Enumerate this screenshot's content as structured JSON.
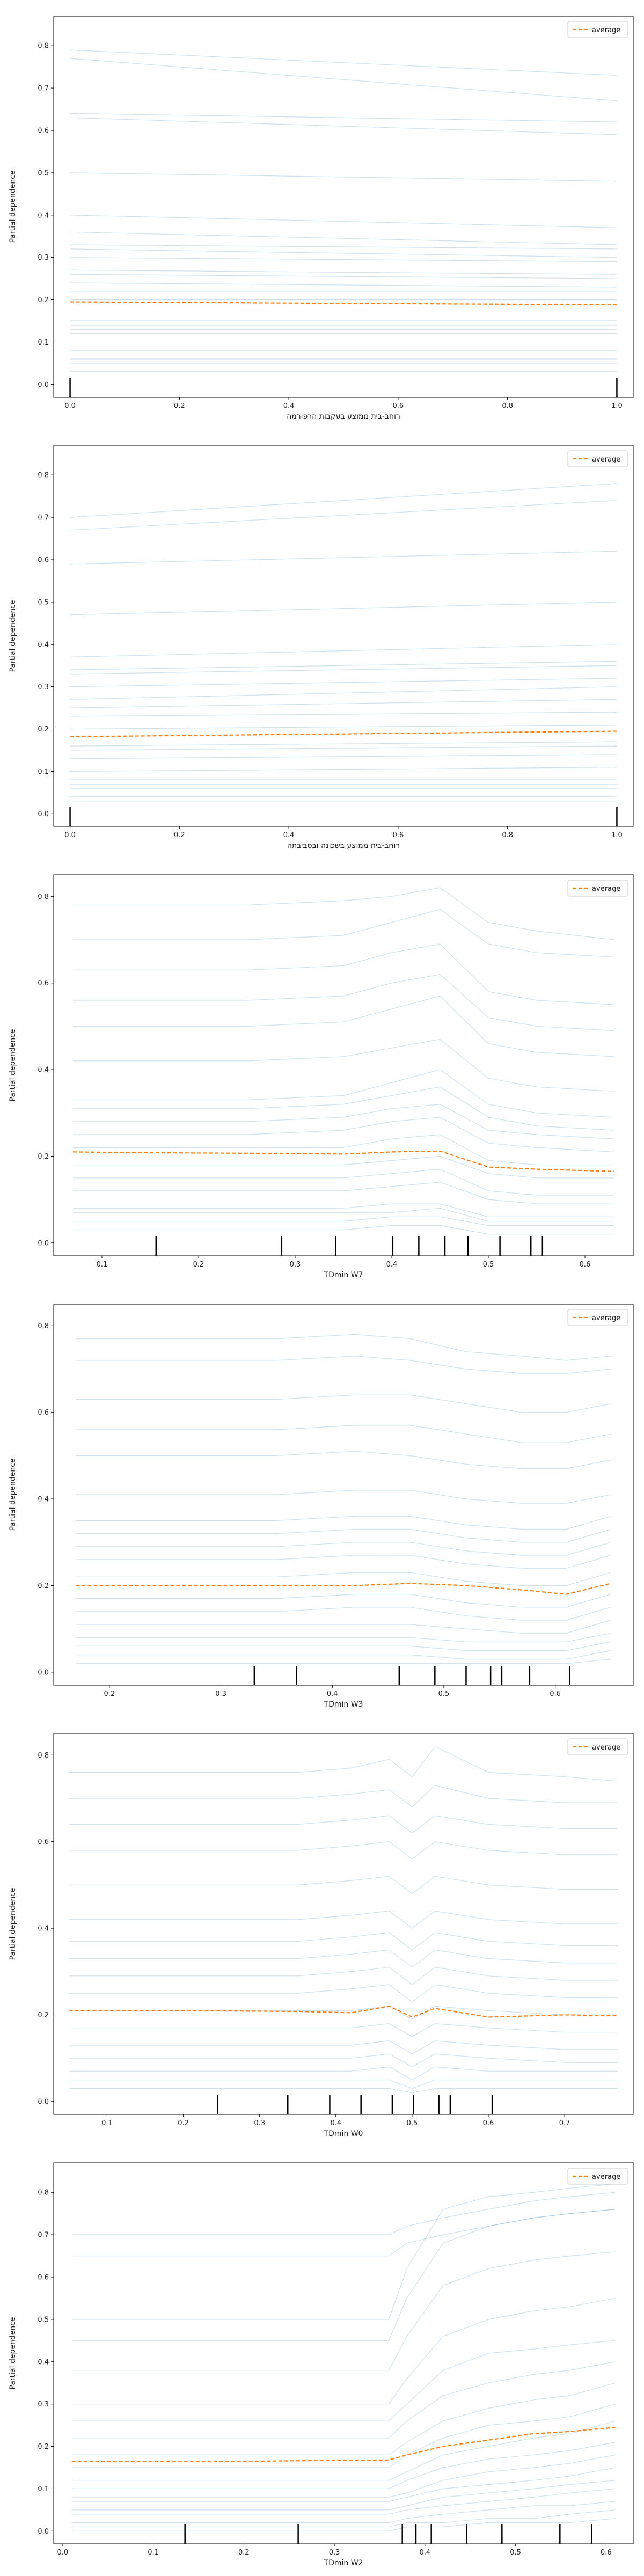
{
  "figure": {
    "background": "#ffffff",
    "ice_color": "#1f77b4",
    "average_color": "#ff7f0e"
  },
  "chart_data": [
    {
      "type": "line",
      "xlabel": "רוחב-בית ממוצע בעקבות הרפורמה",
      "ylabel": "Partial dependence",
      "xlim": [
        -0.03,
        1.03
      ],
      "ylim": [
        -0.03,
        0.87
      ],
      "xticks": [
        0.0,
        0.2,
        0.4,
        0.6,
        0.8,
        1.0
      ],
      "yticks": [
        0.0,
        0.1,
        0.2,
        0.3,
        0.4,
        0.5,
        0.6,
        0.7,
        0.8
      ],
      "legend": [
        "average"
      ],
      "legend_position": "top-right",
      "grid": false,
      "x": [
        0.0,
        1.0
      ],
      "ice_start": [
        0.79,
        0.77,
        0.64,
        0.63,
        0.5,
        0.4,
        0.36,
        0.33,
        0.32,
        0.3,
        0.27,
        0.26,
        0.24,
        0.22,
        0.2,
        0.15,
        0.14,
        0.13,
        0.12,
        0.08,
        0.06,
        0.05,
        0.03
      ],
      "ice_end": [
        0.73,
        0.67,
        0.62,
        0.59,
        0.48,
        0.37,
        0.33,
        0.32,
        0.3,
        0.29,
        0.26,
        0.25,
        0.23,
        0.22,
        0.2,
        0.15,
        0.14,
        0.13,
        0.12,
        0.08,
        0.06,
        0.05,
        0.03
      ],
      "average": [
        0.195,
        0.188
      ],
      "rug": [
        0.0,
        1.0
      ]
    },
    {
      "type": "line",
      "xlabel": "רוחב-בית ממוצע בשכונה ובסביבתה",
      "ylabel": "Partial dependence",
      "xlim": [
        -0.03,
        1.03
      ],
      "ylim": [
        -0.03,
        0.87
      ],
      "xticks": [
        0.0,
        0.2,
        0.4,
        0.6,
        0.8,
        1.0
      ],
      "yticks": [
        0.0,
        0.1,
        0.2,
        0.3,
        0.4,
        0.5,
        0.6,
        0.7,
        0.8
      ],
      "legend": [
        "average"
      ],
      "legend_position": "top-right",
      "grid": false,
      "x": [
        0.0,
        1.0
      ],
      "ice_start": [
        0.7,
        0.67,
        0.59,
        0.47,
        0.37,
        0.34,
        0.33,
        0.3,
        0.27,
        0.25,
        0.23,
        0.2,
        0.16,
        0.15,
        0.13,
        0.1,
        0.08,
        0.07,
        0.06,
        0.04,
        0.03
      ],
      "ice_end": [
        0.78,
        0.74,
        0.62,
        0.5,
        0.4,
        0.36,
        0.35,
        0.32,
        0.3,
        0.27,
        0.24,
        0.21,
        0.17,
        0.16,
        0.14,
        0.11,
        0.08,
        0.07,
        0.06,
        0.04,
        0.03
      ],
      "average": [
        0.182,
        0.195
      ],
      "rug": [
        0.0,
        1.0
      ]
    },
    {
      "type": "line",
      "xlabel": "TDmin W7",
      "ylabel": "Partial dependence",
      "xlim": [
        0.05,
        0.65
      ],
      "ylim": [
        -0.03,
        0.85
      ],
      "xticks": [
        0.1,
        0.2,
        0.3,
        0.4,
        0.5,
        0.6
      ],
      "yticks": [
        0.0,
        0.2,
        0.4,
        0.6,
        0.8
      ],
      "legend": [
        "average"
      ],
      "legend_position": "top-right",
      "grid": false,
      "x": [
        0.07,
        0.15,
        0.25,
        0.35,
        0.4,
        0.45,
        0.5,
        0.55,
        0.63
      ],
      "ice_profiles": [
        [
          0.78,
          0.78,
          0.78,
          0.79,
          0.8,
          0.82,
          0.74,
          0.72,
          0.7
        ],
        [
          0.7,
          0.7,
          0.7,
          0.71,
          0.74,
          0.77,
          0.69,
          0.67,
          0.66
        ],
        [
          0.63,
          0.63,
          0.63,
          0.64,
          0.67,
          0.69,
          0.58,
          0.56,
          0.55
        ],
        [
          0.56,
          0.56,
          0.56,
          0.57,
          0.6,
          0.62,
          0.52,
          0.5,
          0.49
        ],
        [
          0.5,
          0.5,
          0.5,
          0.51,
          0.54,
          0.57,
          0.46,
          0.44,
          0.43
        ],
        [
          0.42,
          0.42,
          0.42,
          0.43,
          0.45,
          0.47,
          0.38,
          0.36,
          0.35
        ],
        [
          0.33,
          0.33,
          0.33,
          0.34,
          0.37,
          0.4,
          0.32,
          0.3,
          0.29
        ],
        [
          0.31,
          0.31,
          0.31,
          0.32,
          0.34,
          0.36,
          0.29,
          0.27,
          0.26
        ],
        [
          0.28,
          0.28,
          0.28,
          0.29,
          0.31,
          0.32,
          0.26,
          0.25,
          0.24
        ],
        [
          0.25,
          0.25,
          0.25,
          0.26,
          0.28,
          0.29,
          0.23,
          0.22,
          0.21
        ],
        [
          0.22,
          0.22,
          0.22,
          0.22,
          0.24,
          0.25,
          0.19,
          0.18,
          0.18
        ],
        [
          0.18,
          0.18,
          0.18,
          0.18,
          0.19,
          0.2,
          0.16,
          0.15,
          0.15
        ],
        [
          0.15,
          0.15,
          0.15,
          0.15,
          0.16,
          0.17,
          0.12,
          0.11,
          0.11
        ],
        [
          0.12,
          0.12,
          0.12,
          0.12,
          0.13,
          0.14,
          0.1,
          0.09,
          0.09
        ],
        [
          0.08,
          0.08,
          0.08,
          0.08,
          0.09,
          0.09,
          0.06,
          0.06,
          0.06
        ],
        [
          0.07,
          0.07,
          0.07,
          0.07,
          0.07,
          0.08,
          0.05,
          0.05,
          0.05
        ],
        [
          0.05,
          0.05,
          0.05,
          0.05,
          0.06,
          0.06,
          0.04,
          0.04,
          0.04
        ],
        [
          0.03,
          0.03,
          0.03,
          0.03,
          0.04,
          0.04,
          0.02,
          0.02,
          0.02
        ]
      ],
      "average": [
        0.21,
        0.208,
        0.207,
        0.205,
        0.21,
        0.212,
        0.175,
        0.17,
        0.165
      ],
      "rug": [
        0.156,
        0.286,
        0.342,
        0.401,
        0.428,
        0.455,
        0.479,
        0.512,
        0.544,
        0.556
      ]
    },
    {
      "type": "line",
      "xlabel": "TDmin W3",
      "ylabel": "Partial dependence",
      "xlim": [
        0.15,
        0.67
      ],
      "ylim": [
        -0.03,
        0.85
      ],
      "xticks": [
        0.2,
        0.3,
        0.4,
        0.5,
        0.6
      ],
      "yticks": [
        0.0,
        0.2,
        0.4,
        0.6,
        0.8
      ],
      "legend": [
        "average"
      ],
      "legend_position": "top-right",
      "grid": false,
      "x": [
        0.17,
        0.25,
        0.35,
        0.42,
        0.47,
        0.52,
        0.57,
        0.61,
        0.65
      ],
      "ice_profiles": [
        [
          0.77,
          0.77,
          0.77,
          0.78,
          0.77,
          0.74,
          0.73,
          0.72,
          0.73
        ],
        [
          0.72,
          0.72,
          0.72,
          0.73,
          0.72,
          0.7,
          0.69,
          0.69,
          0.7
        ],
        [
          0.63,
          0.63,
          0.63,
          0.64,
          0.64,
          0.62,
          0.6,
          0.6,
          0.62
        ],
        [
          0.56,
          0.56,
          0.56,
          0.57,
          0.57,
          0.55,
          0.53,
          0.53,
          0.55
        ],
        [
          0.5,
          0.5,
          0.5,
          0.51,
          0.5,
          0.48,
          0.47,
          0.47,
          0.49
        ],
        [
          0.41,
          0.41,
          0.41,
          0.42,
          0.42,
          0.4,
          0.39,
          0.39,
          0.41
        ],
        [
          0.35,
          0.35,
          0.35,
          0.36,
          0.36,
          0.34,
          0.33,
          0.33,
          0.36
        ],
        [
          0.32,
          0.32,
          0.32,
          0.33,
          0.33,
          0.31,
          0.3,
          0.3,
          0.33
        ],
        [
          0.29,
          0.29,
          0.29,
          0.3,
          0.3,
          0.28,
          0.27,
          0.27,
          0.3
        ],
        [
          0.26,
          0.26,
          0.26,
          0.27,
          0.27,
          0.25,
          0.24,
          0.24,
          0.27
        ],
        [
          0.22,
          0.22,
          0.22,
          0.23,
          0.23,
          0.21,
          0.2,
          0.2,
          0.23
        ],
        [
          0.17,
          0.17,
          0.17,
          0.18,
          0.18,
          0.16,
          0.15,
          0.15,
          0.18
        ],
        [
          0.14,
          0.14,
          0.14,
          0.15,
          0.15,
          0.13,
          0.12,
          0.12,
          0.15
        ],
        [
          0.11,
          0.11,
          0.11,
          0.11,
          0.11,
          0.1,
          0.09,
          0.09,
          0.12
        ],
        [
          0.08,
          0.08,
          0.08,
          0.08,
          0.08,
          0.07,
          0.07,
          0.07,
          0.09
        ],
        [
          0.06,
          0.06,
          0.06,
          0.06,
          0.06,
          0.05,
          0.05,
          0.05,
          0.07
        ],
        [
          0.04,
          0.04,
          0.04,
          0.04,
          0.04,
          0.03,
          0.03,
          0.03,
          0.05
        ],
        [
          0.02,
          0.02,
          0.02,
          0.02,
          0.02,
          0.02,
          0.02,
          0.02,
          0.03
        ]
      ],
      "average": [
        0.2,
        0.2,
        0.2,
        0.2,
        0.205,
        0.2,
        0.19,
        0.18,
        0.205
      ],
      "rug": [
        0.33,
        0.368,
        0.46,
        0.492,
        0.52,
        0.542,
        0.552,
        0.577,
        0.613
      ]
    },
    {
      "type": "line",
      "xlabel": "TDmin W0",
      "ylabel": "Partial dependence",
      "xlim": [
        0.03,
        0.79
      ],
      "ylim": [
        -0.03,
        0.85
      ],
      "xticks": [
        0.1,
        0.2,
        0.3,
        0.4,
        0.5,
        0.6,
        0.7
      ],
      "yticks": [
        0.0,
        0.2,
        0.4,
        0.6,
        0.8
      ],
      "legend": [
        "average"
      ],
      "legend_position": "top-right",
      "grid": false,
      "x": [
        0.05,
        0.2,
        0.35,
        0.42,
        0.47,
        0.5,
        0.53,
        0.6,
        0.7,
        0.77
      ],
      "ice_profiles": [
        [
          0.76,
          0.76,
          0.76,
          0.77,
          0.79,
          0.75,
          0.82,
          0.76,
          0.75,
          0.74
        ],
        [
          0.7,
          0.7,
          0.7,
          0.71,
          0.72,
          0.68,
          0.73,
          0.7,
          0.69,
          0.69
        ],
        [
          0.64,
          0.64,
          0.64,
          0.65,
          0.66,
          0.62,
          0.66,
          0.64,
          0.63,
          0.63
        ],
        [
          0.58,
          0.58,
          0.58,
          0.59,
          0.6,
          0.56,
          0.6,
          0.58,
          0.57,
          0.57
        ],
        [
          0.5,
          0.5,
          0.5,
          0.51,
          0.52,
          0.48,
          0.52,
          0.5,
          0.49,
          0.49
        ],
        [
          0.42,
          0.42,
          0.42,
          0.43,
          0.44,
          0.4,
          0.44,
          0.42,
          0.41,
          0.41
        ],
        [
          0.37,
          0.37,
          0.37,
          0.38,
          0.39,
          0.35,
          0.39,
          0.37,
          0.36,
          0.36
        ],
        [
          0.33,
          0.33,
          0.33,
          0.34,
          0.35,
          0.31,
          0.35,
          0.33,
          0.32,
          0.32
        ],
        [
          0.29,
          0.29,
          0.29,
          0.3,
          0.31,
          0.27,
          0.31,
          0.29,
          0.28,
          0.28
        ],
        [
          0.25,
          0.25,
          0.25,
          0.26,
          0.27,
          0.23,
          0.27,
          0.25,
          0.24,
          0.24
        ],
        [
          0.21,
          0.21,
          0.21,
          0.21,
          0.22,
          0.19,
          0.22,
          0.21,
          0.2,
          0.2
        ],
        [
          0.17,
          0.17,
          0.17,
          0.17,
          0.18,
          0.15,
          0.18,
          0.17,
          0.16,
          0.16
        ],
        [
          0.13,
          0.13,
          0.13,
          0.13,
          0.14,
          0.11,
          0.14,
          0.13,
          0.12,
          0.12
        ],
        [
          0.1,
          0.1,
          0.1,
          0.1,
          0.11,
          0.08,
          0.11,
          0.1,
          0.09,
          0.09
        ],
        [
          0.07,
          0.07,
          0.07,
          0.07,
          0.08,
          0.05,
          0.08,
          0.07,
          0.07,
          0.07
        ],
        [
          0.05,
          0.05,
          0.05,
          0.05,
          0.05,
          0.03,
          0.05,
          0.05,
          0.05,
          0.05
        ],
        [
          0.03,
          0.03,
          0.03,
          0.03,
          0.03,
          0.02,
          0.03,
          0.03,
          0.03,
          0.03
        ]
      ],
      "average": [
        0.21,
        0.21,
        0.208,
        0.205,
        0.22,
        0.195,
        0.215,
        0.195,
        0.2,
        0.198
      ],
      "rug": [
        0.245,
        0.337,
        0.392,
        0.433,
        0.474,
        0.502,
        0.535,
        0.55,
        0.605
      ]
    },
    {
      "type": "line",
      "xlabel": "TDmin W2",
      "ylabel": "Partial dependence",
      "xlim": [
        -0.01,
        0.63
      ],
      "ylim": [
        -0.03,
        0.87
      ],
      "xticks": [
        0.0,
        0.1,
        0.2,
        0.3,
        0.4,
        0.5,
        0.6
      ],
      "yticks": [
        0.0,
        0.1,
        0.2,
        0.3,
        0.4,
        0.5,
        0.6,
        0.7,
        0.8
      ],
      "legend": [
        "average"
      ],
      "legend_position": "top-right",
      "grid": false,
      "x": [
        0.01,
        0.2,
        0.36,
        0.38,
        0.42,
        0.47,
        0.52,
        0.56,
        0.61
      ],
      "ice_profiles": [
        [
          0.5,
          0.5,
          0.5,
          0.62,
          0.76,
          0.79,
          0.8,
          0.81,
          0.82
        ],
        [
          0.45,
          0.45,
          0.45,
          0.55,
          0.68,
          0.72,
          0.74,
          0.75,
          0.76
        ],
        [
          0.38,
          0.38,
          0.38,
          0.46,
          0.58,
          0.62,
          0.64,
          0.65,
          0.66
        ],
        [
          0.3,
          0.3,
          0.3,
          0.36,
          0.46,
          0.5,
          0.52,
          0.53,
          0.55
        ],
        [
          0.26,
          0.26,
          0.26,
          0.3,
          0.38,
          0.42,
          0.43,
          0.44,
          0.45
        ],
        [
          0.22,
          0.22,
          0.22,
          0.26,
          0.32,
          0.35,
          0.37,
          0.38,
          0.4
        ],
        [
          0.18,
          0.18,
          0.18,
          0.21,
          0.26,
          0.29,
          0.31,
          0.32,
          0.35
        ],
        [
          0.15,
          0.15,
          0.15,
          0.18,
          0.22,
          0.25,
          0.26,
          0.27,
          0.3
        ],
        [
          0.12,
          0.12,
          0.12,
          0.14,
          0.18,
          0.2,
          0.22,
          0.23,
          0.26
        ],
        [
          0.1,
          0.1,
          0.1,
          0.12,
          0.15,
          0.17,
          0.18,
          0.19,
          0.21
        ],
        [
          0.08,
          0.08,
          0.08,
          0.09,
          0.12,
          0.14,
          0.15,
          0.16,
          0.18
        ],
        [
          0.07,
          0.07,
          0.07,
          0.08,
          0.1,
          0.11,
          0.12,
          0.13,
          0.15
        ],
        [
          0.05,
          0.05,
          0.05,
          0.06,
          0.08,
          0.09,
          0.1,
          0.11,
          0.12
        ],
        [
          0.04,
          0.04,
          0.04,
          0.05,
          0.06,
          0.07,
          0.08,
          0.09,
          0.1
        ],
        [
          0.02,
          0.02,
          0.02,
          0.03,
          0.04,
          0.05,
          0.06,
          0.06,
          0.07
        ],
        [
          0.01,
          0.01,
          0.01,
          0.02,
          0.02,
          0.03,
          0.03,
          0.04,
          0.05
        ],
        [
          0.0,
          0.0,
          0.0,
          0.01,
          0.01,
          0.02,
          0.02,
          0.02,
          0.03
        ],
        [
          0.65,
          0.65,
          0.65,
          0.68,
          0.7,
          0.72,
          0.74,
          0.75,
          0.76
        ],
        [
          0.7,
          0.7,
          0.7,
          0.72,
          0.74,
          0.76,
          0.78,
          0.79,
          0.8
        ]
      ],
      "average": [
        0.165,
        0.165,
        0.168,
        0.18,
        0.2,
        0.215,
        0.23,
        0.235,
        0.245
      ],
      "rug": [
        0.135,
        0.26,
        0.375,
        0.39,
        0.407,
        0.446,
        0.485,
        0.549,
        0.584
      ]
    }
  ]
}
